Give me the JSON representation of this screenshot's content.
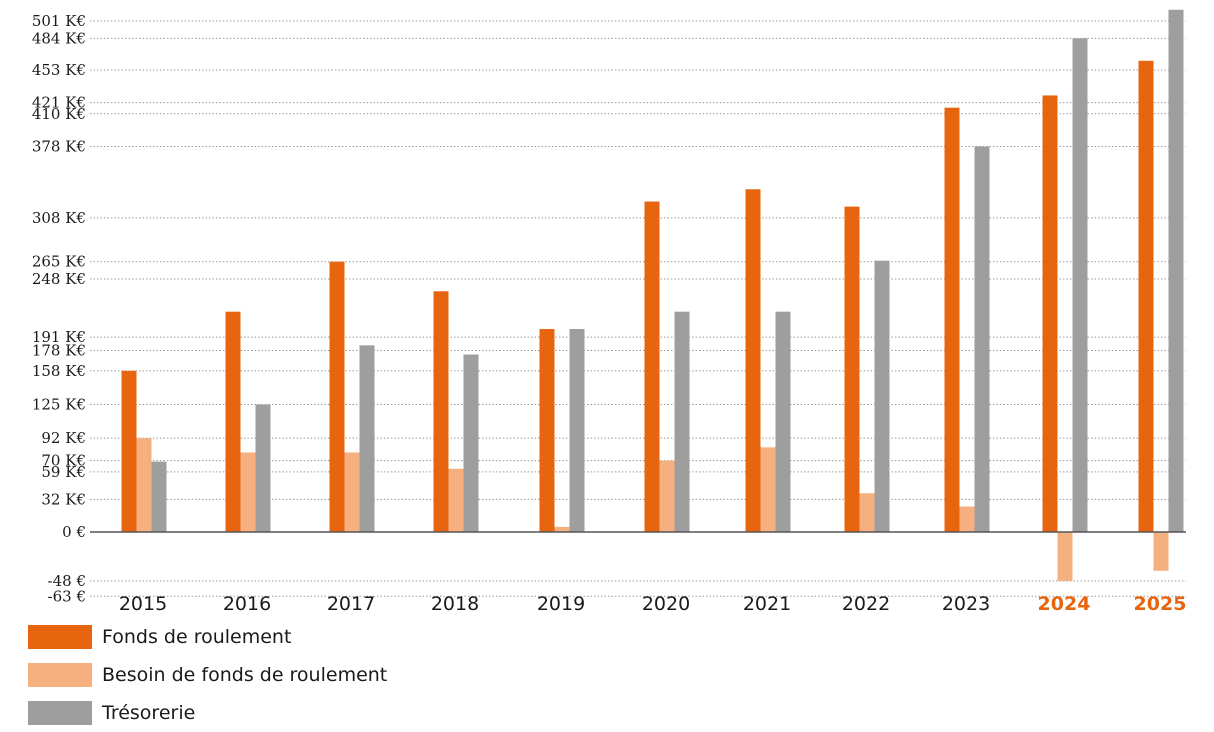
{
  "chart_data": {
    "type": "bar",
    "categories": [
      "2015",
      "2016",
      "2017",
      "2018",
      "2019",
      "2020",
      "2021",
      "2022",
      "2023",
      "2024",
      "2025"
    ],
    "highlight_categories": [
      "2024",
      "2025"
    ],
    "y_ticks": [
      {
        "value": 501,
        "label": "501 K€"
      },
      {
        "value": 484,
        "label": "484 K€"
      },
      {
        "value": 453,
        "label": "453 K€"
      },
      {
        "value": 421,
        "label": "421 K€"
      },
      {
        "value": 410,
        "label": "410 K€"
      },
      {
        "value": 378,
        "label": "378 K€"
      },
      {
        "value": 308,
        "label": "308 K€"
      },
      {
        "value": 265,
        "label": "265 K€"
      },
      {
        "value": 248,
        "label": "248 K€"
      },
      {
        "value": 191,
        "label": "191 K€"
      },
      {
        "value": 178,
        "label": "178 K€"
      },
      {
        "value": 158,
        "label": "158 K€"
      },
      {
        "value": 125,
        "label": "125 K€"
      },
      {
        "value": 92,
        "label": "92 K€"
      },
      {
        "value": 70,
        "label": "70 K€"
      },
      {
        "value": 59,
        "label": "59 K€"
      },
      {
        "value": 32,
        "label": "32 K€"
      },
      {
        "value": 0,
        "label": "0 €"
      },
      {
        "value": -48,
        "label": "-48 €"
      },
      {
        "value": -63,
        "label": "-63 €"
      }
    ],
    "series": [
      {
        "name": "Fonds de roulement",
        "color": "#E8650F",
        "values": [
          158,
          216,
          265,
          236,
          199,
          324,
          336,
          319,
          416,
          428,
          462
        ]
      },
      {
        "name": "Besoin de fonds de roulement",
        "color": "#F6B07F",
        "values": [
          92,
          78,
          78,
          62,
          5,
          70,
          83,
          38,
          25,
          -48,
          -38
        ]
      },
      {
        "name": "Trésorerie",
        "color": "#9E9E9E",
        "values": [
          69,
          125,
          183,
          174,
          199,
          216,
          216,
          266,
          378,
          484,
          512
        ]
      }
    ],
    "grid": true,
    "legend_position": "bottom-left"
  }
}
